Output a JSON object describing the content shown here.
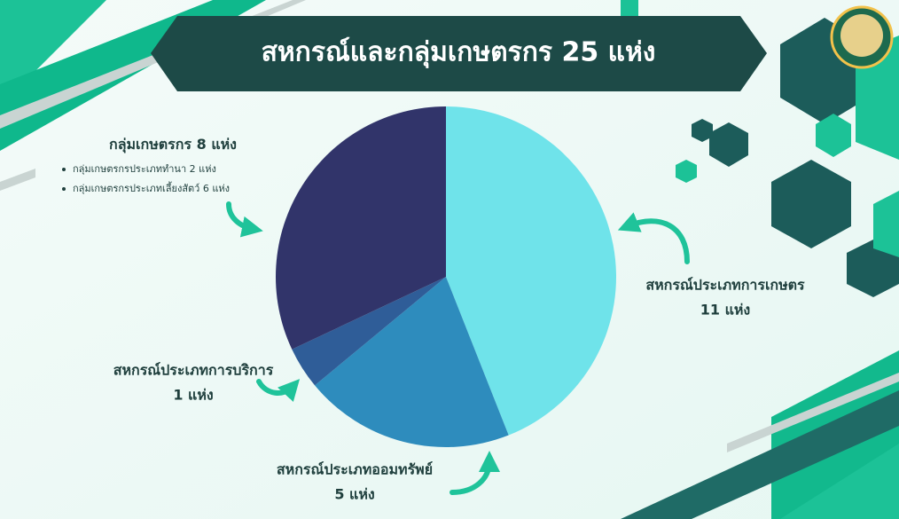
{
  "chart_data": {
    "type": "pie",
    "title": "สหกรณ์และกลุ่มเกษตรกร 25 แห่ง",
    "categories": [
      "สหกรณ์ประเภทการเกษตร",
      "สหกรณ์ประเภทออมทรัพย์",
      "สหกรณ์ประเภทการบริการ",
      "กลุ่มเกษตรกร"
    ],
    "values": [
      11,
      5,
      1,
      8
    ],
    "value_labels": [
      "11 แห่ง",
      "5 แห่ง",
      "1 แห่ง",
      "8  แห่ง"
    ],
    "colors": [
      "#6fe3ea",
      "#2e8cbd",
      "#2f5d98",
      "#31346a"
    ],
    "annotations": [
      "กลุ่มเกษตรกรประเภททำนา 2 แห่ง",
      "กลุ่มเกษตรกรประเภทเลี้ยงสัตว์ 6 แห่ง"
    ]
  }
}
